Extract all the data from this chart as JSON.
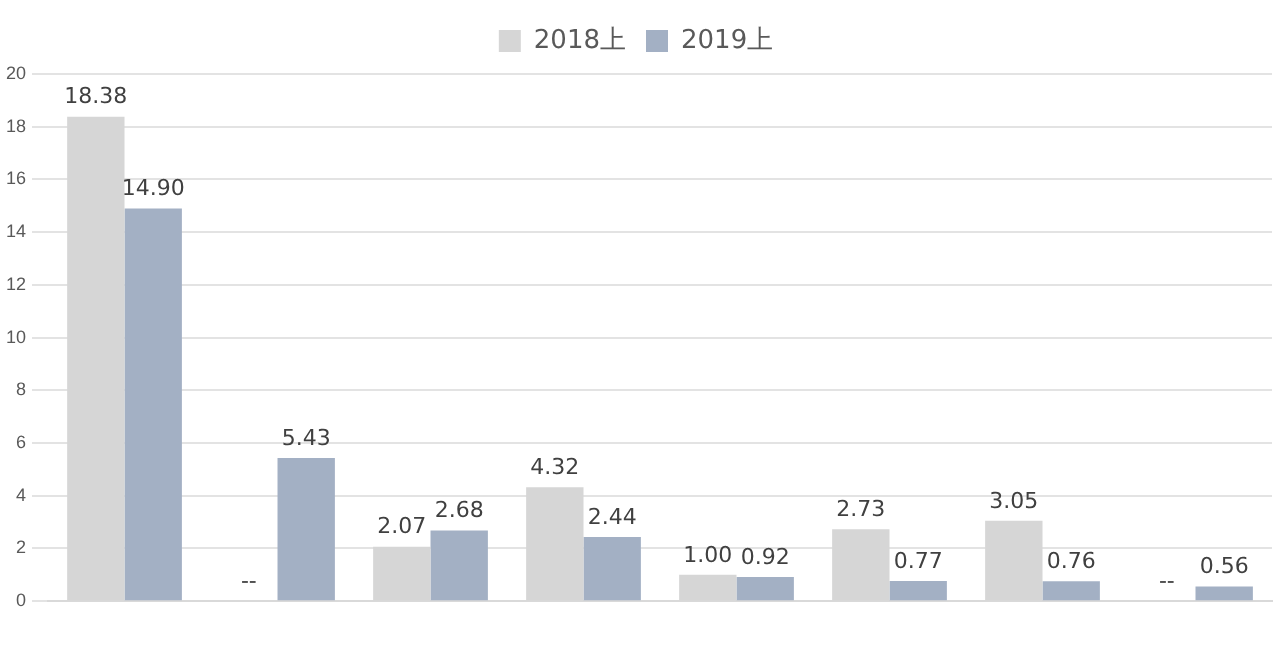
{
  "chart_data": {
    "type": "bar",
    "categories": [
      null,
      null,
      null,
      null,
      null,
      null,
      null,
      null
    ],
    "series": [
      {
        "name": "2018上",
        "color": "#d6d6d6",
        "values": [
          18.38,
          null,
          2.07,
          4.32,
          1.0,
          2.73,
          3.05,
          null
        ],
        "value_labels": [
          "18.38",
          "--",
          "2.07",
          "4.32",
          "1.00",
          "2.73",
          "3.05",
          "--"
        ]
      },
      {
        "name": "2019上",
        "color": "#a3b0c4",
        "values": [
          14.9,
          5.43,
          2.68,
          2.44,
          0.92,
          0.77,
          0.76,
          0.56
        ],
        "value_labels": [
          "14.90",
          "5.43",
          "2.68",
          "2.44",
          "0.92",
          "0.77",
          "0.76",
          "0.56"
        ]
      }
    ],
    "ylim": [
      0,
      20
    ],
    "yticks": [
      0,
      2,
      4,
      6,
      8,
      10,
      12,
      14,
      16,
      18,
      20
    ],
    "grid": "y",
    "legend": "top"
  }
}
